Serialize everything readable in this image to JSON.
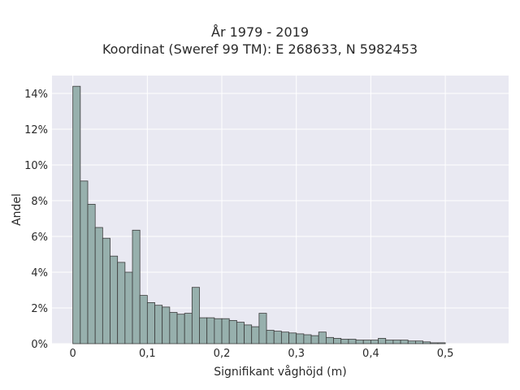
{
  "chart_data": {
    "type": "bar",
    "title_line1": "År 1979 - 2019",
    "title_line2": "Koordinat (Sweref 99 TM): E 268633, N 5982453",
    "xlabel": "Signifikant våghöjd (m)",
    "ylabel": "Andel",
    "x_ticks": [
      {
        "value": 0,
        "label": "0"
      },
      {
        "value": 0.1,
        "label": "0,1"
      },
      {
        "value": 0.2,
        "label": "0,2"
      },
      {
        "value": 0.3,
        "label": "0,3"
      },
      {
        "value": 0.4,
        "label": "0,4"
      },
      {
        "value": 0.5,
        "label": "0,5"
      }
    ],
    "y_ticks": [
      {
        "value": 0,
        "label": "0%"
      },
      {
        "value": 2,
        "label": "2%"
      },
      {
        "value": 4,
        "label": "4%"
      },
      {
        "value": 6,
        "label": "6%"
      },
      {
        "value": 8,
        "label": "8%"
      },
      {
        "value": 10,
        "label": "10%"
      },
      {
        "value": 12,
        "label": "12%"
      },
      {
        "value": 14,
        "label": "14%"
      }
    ],
    "xlim": [
      -0.028,
      0.585
    ],
    "ylim": [
      0,
      15
    ],
    "bin_width": 0.01,
    "bin_start": 0,
    "values": [
      14.4,
      9.1,
      7.8,
      6.5,
      5.9,
      4.9,
      4.55,
      4.0,
      6.35,
      2.7,
      2.3,
      2.15,
      2.05,
      1.75,
      1.65,
      1.7,
      3.15,
      1.45,
      1.45,
      1.4,
      1.4,
      1.3,
      1.2,
      1.05,
      0.95,
      1.7,
      0.75,
      0.7,
      0.65,
      0.6,
      0.55,
      0.5,
      0.45,
      0.65,
      0.35,
      0.3,
      0.25,
      0.25,
      0.2,
      0.2,
      0.2,
      0.3,
      0.2,
      0.2,
      0.2,
      0.15,
      0.15,
      0.1,
      0.05,
      0.05
    ],
    "grid": true,
    "colors": {
      "plot_bg": "#e9e9f2",
      "bar_fill": "#97b0ad",
      "bar_edge": "#3c3c3c",
      "grid": "#ffffff"
    }
  }
}
